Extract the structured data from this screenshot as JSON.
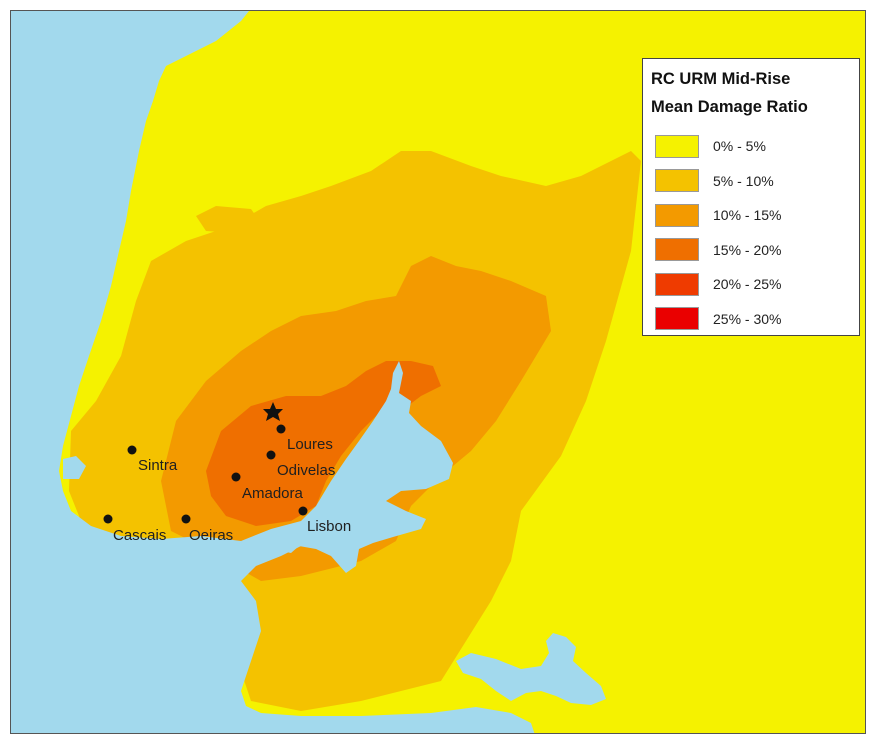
{
  "map": {
    "colors": {
      "water": "#a2d9ed",
      "c0_5": "#f5f200",
      "c5_10": "#f4c200",
      "c10_15": "#f39a00",
      "c15_20": "#ef6f00",
      "c20_25": "#ef3b00",
      "c25_30": "#ea0000"
    },
    "epicenter_icon": "star-icon",
    "cities": [
      {
        "name": "Sintra"
      },
      {
        "name": "Loures"
      },
      {
        "name": "Odivelas"
      },
      {
        "name": "Amadora"
      },
      {
        "name": "Lisbon"
      },
      {
        "name": "Cascais"
      },
      {
        "name": "Oeiras"
      }
    ]
  },
  "legend": {
    "title_line1": "RC URM Mid-Rise",
    "title_line2": "Mean Damage Ratio",
    "items": [
      {
        "label": "0% - 5%",
        "color": "#f5f200"
      },
      {
        "label": "5% - 10%",
        "color": "#f4c200"
      },
      {
        "label": "10% - 15%",
        "color": "#f39a00"
      },
      {
        "label": "15% - 20%",
        "color": "#ef6f00"
      },
      {
        "label": "20% - 25%",
        "color": "#ef3b00"
      },
      {
        "label": "25% - 30%",
        "color": "#ea0000"
      }
    ]
  }
}
